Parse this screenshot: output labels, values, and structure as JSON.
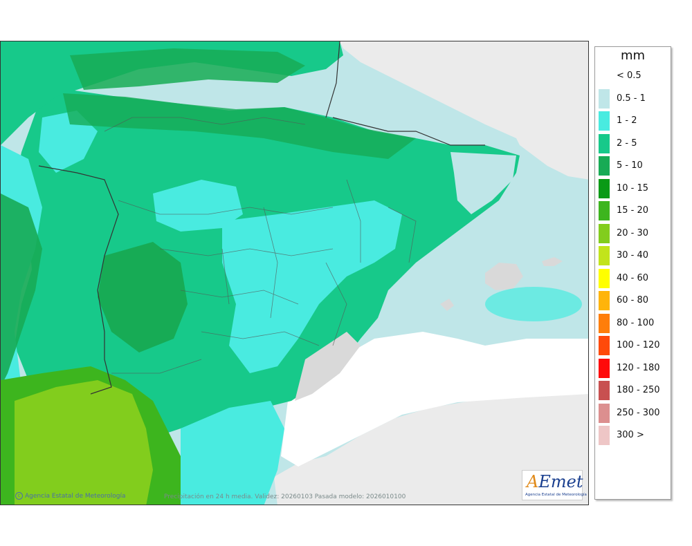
{
  "legend": {
    "unit": "mm",
    "items": [
      {
        "label": "< 0.5",
        "color": "#ffffff"
      },
      {
        "label": "0.5 - 1",
        "color": "#bfe6e8"
      },
      {
        "label": "1 - 2",
        "color": "#49ebe0"
      },
      {
        "label": "2 - 5",
        "color": "#17c98a"
      },
      {
        "label": "5 - 10",
        "color": "#17ab55"
      },
      {
        "label": "10 - 15",
        "color": "#0a9a16"
      },
      {
        "label": "15 - 20",
        "color": "#3db51e"
      },
      {
        "label": "20 - 30",
        "color": "#82cd1d"
      },
      {
        "label": "30 - 40",
        "color": "#c2e41b"
      },
      {
        "label": "40 - 60",
        "color": "#ffff00"
      },
      {
        "label": "60 - 80",
        "color": "#ffb40a"
      },
      {
        "label": "80 - 100",
        "color": "#ff7e0a"
      },
      {
        "label": "100 - 120",
        "color": "#ff4a0a"
      },
      {
        "label": "120 - 180",
        "color": "#ff0a0a"
      },
      {
        "label": "180 - 250",
        "color": "#c85050"
      },
      {
        "label": "250 - 300",
        "color": "#dc8f8f"
      },
      {
        "label": "300 >",
        "color": "#eec6c6"
      }
    ]
  },
  "footer": {
    "copyright": "Agencia Estatal de Meteorología",
    "caption": "Precipitación en 24 h media. Validez: 20260103 Pasada modelo: 2026010100"
  },
  "logo": {
    "name_a": "A",
    "name_rest": "Emet",
    "subtitle": "Agencia Estatal de Meteorología"
  }
}
